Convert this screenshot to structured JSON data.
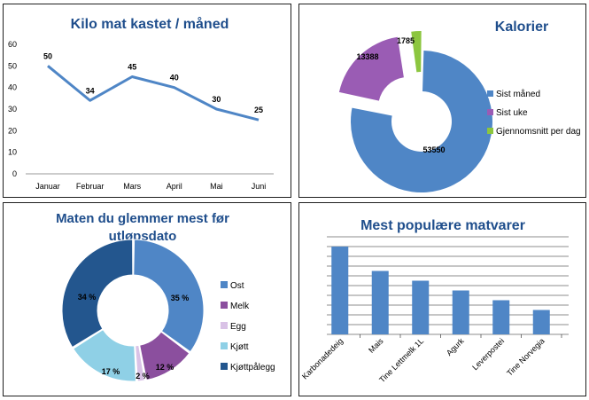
{
  "colors": {
    "title": "#1f4e8c",
    "line": "#4f86c6",
    "sist_maned": "#4f86c6",
    "sist_uke": "#9a5cb4",
    "gjennomsnitt": "#8cc63f",
    "ost": "#4f86c6",
    "melk": "#8b4f9e",
    "egg": "#d9c2e6",
    "kjott": "#8fd0e6",
    "kjottpalegg": "#23568e",
    "bar": "#4f86c6",
    "grid": "#1f1f1f"
  },
  "chart_data": [
    {
      "type": "line",
      "title": "Kilo mat kastet / måned",
      "categories": [
        "Januar",
        "Februar",
        "Mars",
        "April",
        "Mai",
        "Juni"
      ],
      "values": [
        50,
        34,
        45,
        40,
        30,
        25
      ],
      "data_labels": [
        "50",
        "34",
        "45",
        "40",
        "30",
        "25"
      ],
      "ylim": [
        0,
        60
      ],
      "yticks": [
        "0",
        "10",
        "20",
        "30",
        "40",
        "50",
        "60"
      ],
      "grid": false
    },
    {
      "type": "pie",
      "title": "Kalorier",
      "labels": [
        "Sist måned",
        "Sist uke",
        "Gjennomsnitt per dag"
      ],
      "values": [
        53550,
        13388,
        1785
      ],
      "data_labels": [
        "53550",
        "13388",
        "1785"
      ],
      "legend": "right"
    },
    {
      "type": "pie",
      "title_lines": [
        "Maten du glemmer mest før",
        "utløpsdato"
      ],
      "labels": [
        "Ost",
        "Melk",
        "Egg",
        "Kjøtt",
        "Kjøttpålegg"
      ],
      "values": [
        35,
        12,
        2,
        17,
        34
      ],
      "data_labels": [
        "35 %",
        "12 %",
        "2 %",
        "17 %",
        "34 %"
      ],
      "legend": "right"
    },
    {
      "type": "bar",
      "title": "Mest populære matvarer",
      "categories": [
        "Karbonadedeig",
        "Mais",
        "Tine Lettmelk 1L",
        "Agurk",
        "Leverpostei",
        "Tine Norvegia"
      ],
      "values": [
        9,
        6.5,
        5.5,
        4.5,
        3.5,
        2.5
      ],
      "ylim": [
        0,
        10
      ],
      "grid": true
    }
  ]
}
